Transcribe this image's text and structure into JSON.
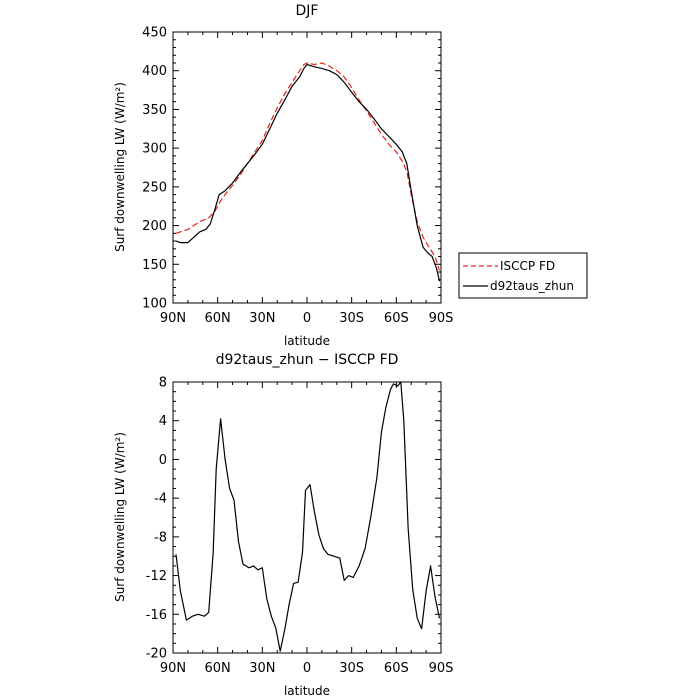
{
  "chart_data": [
    {
      "type": "line",
      "title": "DJF",
      "xlabel": "latitude",
      "ylabel": "Surf downwelling LW (W/m²)",
      "x_ticks": [
        90,
        60,
        30,
        0,
        -30,
        -60,
        -90
      ],
      "x_tick_labels": [
        "90N",
        "60N",
        "30N",
        "0",
        "30S",
        "60S",
        "90S"
      ],
      "xlim": [
        90,
        -90
      ],
      "ylim": [
        100,
        450
      ],
      "y_ticks": [
        100,
        150,
        200,
        250,
        300,
        350,
        400,
        450
      ],
      "legend": "outside-right",
      "series": [
        {
          "name": "ISCCP FD",
          "color": "#e8201c",
          "dash": "dashed",
          "points": [
            [
              88,
              190
            ],
            [
              80,
              195
            ],
            [
              72,
              205
            ],
            [
              66,
              210
            ],
            [
              62,
              218
            ],
            [
              58,
              232
            ],
            [
              55,
              240
            ],
            [
              50,
              252
            ],
            [
              45,
              265
            ],
            [
              40,
              280
            ],
            [
              35,
              295
            ],
            [
              30,
              310
            ],
            [
              25,
              332
            ],
            [
              20,
              352
            ],
            [
              15,
              370
            ],
            [
              10,
              385
            ],
            [
              5,
              400
            ],
            [
              2,
              408
            ],
            [
              0,
              410
            ],
            [
              -5,
              408
            ],
            [
              -10,
              410
            ],
            [
              -15,
              406
            ],
            [
              -20,
              400
            ],
            [
              -25,
              392
            ],
            [
              -30,
              378
            ],
            [
              -35,
              362
            ],
            [
              -40,
              348
            ],
            [
              -45,
              333
            ],
            [
              -50,
              318
            ],
            [
              -55,
              305
            ],
            [
              -60,
              295
            ],
            [
              -64,
              283
            ],
            [
              -67,
              270
            ],
            [
              -70,
              240
            ],
            [
              -74,
              205
            ],
            [
              -78,
              185
            ],
            [
              -82,
              172
            ],
            [
              -86,
              160
            ],
            [
              -89,
              142
            ]
          ]
        },
        {
          "name": "d92taus_zhun",
          "color": "#000000",
          "dash": "solid",
          "points": [
            [
              88,
              180
            ],
            [
              85,
              178
            ],
            [
              80,
              178
            ],
            [
              76,
              185
            ],
            [
              72,
              192
            ],
            [
              68,
              195
            ],
            [
              65,
              202
            ],
            [
              62,
              220
            ],
            [
              59,
              240
            ],
            [
              55,
              245
            ],
            [
              50,
              255
            ],
            [
              45,
              268
            ],
            [
              40,
              280
            ],
            [
              35,
              292
            ],
            [
              30,
              305
            ],
            [
              25,
              325
            ],
            [
              20,
              345
            ],
            [
              15,
              362
            ],
            [
              10,
              380
            ],
            [
              5,
              392
            ],
            [
              2,
              403
            ],
            [
              0,
              408
            ],
            [
              -5,
              405
            ],
            [
              -10,
              403
            ],
            [
              -15,
              400
            ],
            [
              -20,
              395
            ],
            [
              -25,
              385
            ],
            [
              -30,
              372
            ],
            [
              -35,
              360
            ],
            [
              -40,
              350
            ],
            [
              -45,
              338
            ],
            [
              -50,
              325
            ],
            [
              -55,
              315
            ],
            [
              -60,
              305
            ],
            [
              -64,
              295
            ],
            [
              -67,
              280
            ],
            [
              -70,
              245
            ],
            [
              -74,
              200
            ],
            [
              -78,
              172
            ],
            [
              -81,
              165
            ],
            [
              -84,
              160
            ],
            [
              -87,
              145
            ],
            [
              -89,
              128
            ]
          ]
        }
      ]
    },
    {
      "type": "line",
      "title": "d92taus_zhun − ISCCP FD",
      "xlabel": "latitude",
      "ylabel": "Surf downwelling LW (W/m²)",
      "x_ticks": [
        90,
        60,
        30,
        0,
        -30,
        -60,
        -90
      ],
      "x_tick_labels": [
        "90N",
        "60N",
        "30N",
        "0",
        "30S",
        "60S",
        "90S"
      ],
      "xlim": [
        90,
        -90
      ],
      "ylim": [
        -20,
        8
      ],
      "y_ticks": [
        -20,
        -16,
        -12,
        -8,
        -4,
        0,
        4,
        8
      ],
      "series": [
        {
          "name": "",
          "color": "#000000",
          "dash": "solid",
          "points": [
            [
              88,
              -9.8
            ],
            [
              85,
              -13.6
            ],
            [
              81,
              -16.6
            ],
            [
              77,
              -16.2
            ],
            [
              73,
              -16.0
            ],
            [
              69,
              -16.2
            ],
            [
              66,
              -15.8
            ],
            [
              63,
              -9.6
            ],
            [
              61,
              -1.0
            ],
            [
              58,
              4.2
            ],
            [
              55,
              0.0
            ],
            [
              52,
              -3.0
            ],
            [
              49,
              -4.2
            ],
            [
              46,
              -8.5
            ],
            [
              43,
              -10.8
            ],
            [
              39,
              -11.2
            ],
            [
              36,
              -11.0
            ],
            [
              33,
              -11.4
            ],
            [
              30,
              -11.2
            ],
            [
              27,
              -14.4
            ],
            [
              24,
              -16.2
            ],
            [
              21,
              -17.4
            ],
            [
              18,
              -19.8
            ],
            [
              15,
              -17.6
            ],
            [
              12,
              -15.0
            ],
            [
              9,
              -12.8
            ],
            [
              6,
              -12.7
            ],
            [
              3,
              -9.6
            ],
            [
              1,
              -3.2
            ],
            [
              -2,
              -2.6
            ],
            [
              -5,
              -5.4
            ],
            [
              -8,
              -7.8
            ],
            [
              -11,
              -9.2
            ],
            [
              -14,
              -9.8
            ],
            [
              -18,
              -10.0
            ],
            [
              -22,
              -10.2
            ],
            [
              -25,
              -12.5
            ],
            [
              -28,
              -12.0
            ],
            [
              -31,
              -12.2
            ],
            [
              -35,
              -11.0
            ],
            [
              -39,
              -9.2
            ],
            [
              -43,
              -5.8
            ],
            [
              -47,
              -1.8
            ],
            [
              -50,
              2.8
            ],
            [
              -53,
              5.4
            ],
            [
              -56,
              7.2
            ],
            [
              -58,
              7.8
            ],
            [
              -61,
              7.6
            ],
            [
              -63,
              8.0
            ],
            [
              -65,
              4.0
            ],
            [
              -68,
              -7.2
            ],
            [
              -71,
              -13.4
            ],
            [
              -74,
              -16.4
            ],
            [
              -77,
              -17.5
            ],
            [
              -80,
              -13.6
            ],
            [
              -83,
              -11.0
            ],
            [
              -86,
              -14.2
            ],
            [
              -89,
              -16.4
            ]
          ]
        }
      ]
    }
  ]
}
